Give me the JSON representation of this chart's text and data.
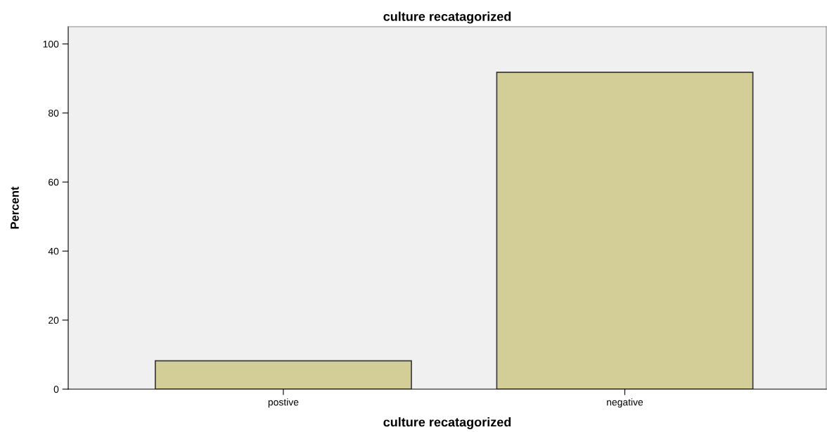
{
  "chart_data": {
    "type": "bar",
    "title": "culture recatagorized",
    "xlabel": "culture recatagorized",
    "ylabel": "Percent",
    "categories": [
      "postive",
      "negative"
    ],
    "values": [
      8.2,
      91.8
    ],
    "color": "#d3ce97",
    "ylim": [
      0,
      105
    ],
    "yticks": [
      0,
      20,
      40,
      60,
      80,
      100
    ],
    "grid": false,
    "legend": false
  }
}
